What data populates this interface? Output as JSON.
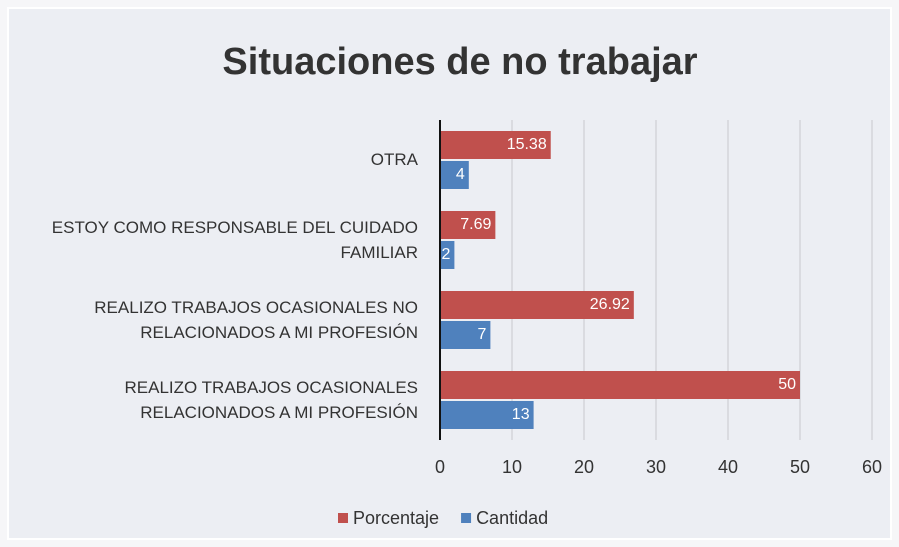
{
  "chart_data": {
    "type": "hbar",
    "title": "Situaciones de no trabajar",
    "categories": [
      "OTRA",
      "ESTOY COMO RESPONSABLE DEL CUIDADO FAMILIAR",
      "REALIZO TRABAJOS OCASIONALES NO RELACIONADOS A MI PROFESIÓN",
      "REALIZO TRABAJOS OCASIONALES RELACIONADOS A MI PROFESIÓN"
    ],
    "series": [
      {
        "name": "Porcentaje",
        "color": "#c0504d",
        "values": [
          15.38,
          7.69,
          26.92,
          50
        ]
      },
      {
        "name": "Cantidad",
        "color": "#4f81bd",
        "values": [
          4,
          2,
          7,
          13
        ]
      }
    ],
    "xlim": [
      0,
      60
    ],
    "xticks": [
      0,
      10,
      20,
      30,
      40,
      50,
      60
    ],
    "grid": true,
    "legend": "bottom"
  }
}
